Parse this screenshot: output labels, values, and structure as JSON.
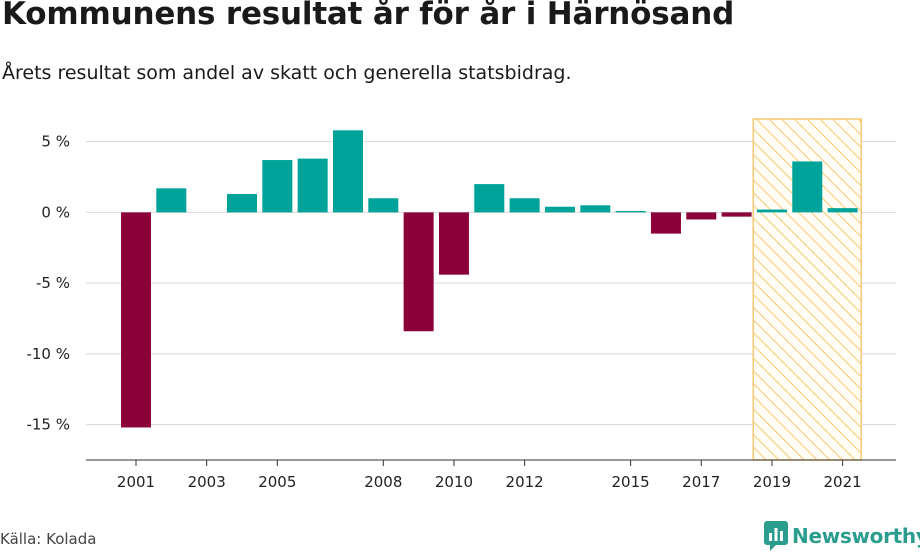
{
  "header": {
    "title": "Kommunens resultat år för år i Härnösand",
    "subtitle": "Årets resultat som andel av skatt och generella statsbidrag."
  },
  "footer": {
    "source": "Källa: Kolada",
    "brand": "Newsworthy"
  },
  "colors": {
    "positive": "#00a39a",
    "negative": "#8c0039",
    "highlight": "#f7c873",
    "grid": "#d9d9d9"
  },
  "chart_data": {
    "type": "bar",
    "title": "Kommunens resultat år för år i Härnösand",
    "subtitle": "Årets resultat som andel av skatt och generella statsbidrag.",
    "xlabel": "",
    "ylabel": "",
    "unit": "%",
    "categories": [
      2001,
      2002,
      2003,
      2004,
      2005,
      2006,
      2007,
      2008,
      2009,
      2010,
      2011,
      2012,
      2013,
      2014,
      2015,
      2016,
      2017,
      2018,
      2019,
      2020,
      2021
    ],
    "values": [
      -15.2,
      1.7,
      null,
      1.3,
      3.7,
      3.8,
      5.8,
      1.0,
      -8.4,
      -4.4,
      2.0,
      1.0,
      0.4,
      0.5,
      0.1,
      -1.5,
      -0.5,
      -0.3,
      0.2,
      3.6,
      0.3
    ],
    "ylim": [
      -17.5,
      6.6
    ],
    "yticks": [
      5,
      0,
      -5,
      -10,
      -15
    ],
    "ytick_labels": [
      "5 %",
      "0 %",
      "-5 %",
      "-10 %",
      "-15 %"
    ],
    "xticks": [
      2001,
      2003,
      2005,
      2008,
      2010,
      2012,
      2015,
      2017,
      2019,
      2021
    ],
    "xtick_labels": [
      "2001",
      "2003",
      "2005",
      "2008",
      "2010",
      "2012",
      "2015",
      "2017",
      "2019",
      "2021"
    ],
    "highlight_range": [
      2019,
      2021
    ],
    "grid": true,
    "legend": "none"
  }
}
